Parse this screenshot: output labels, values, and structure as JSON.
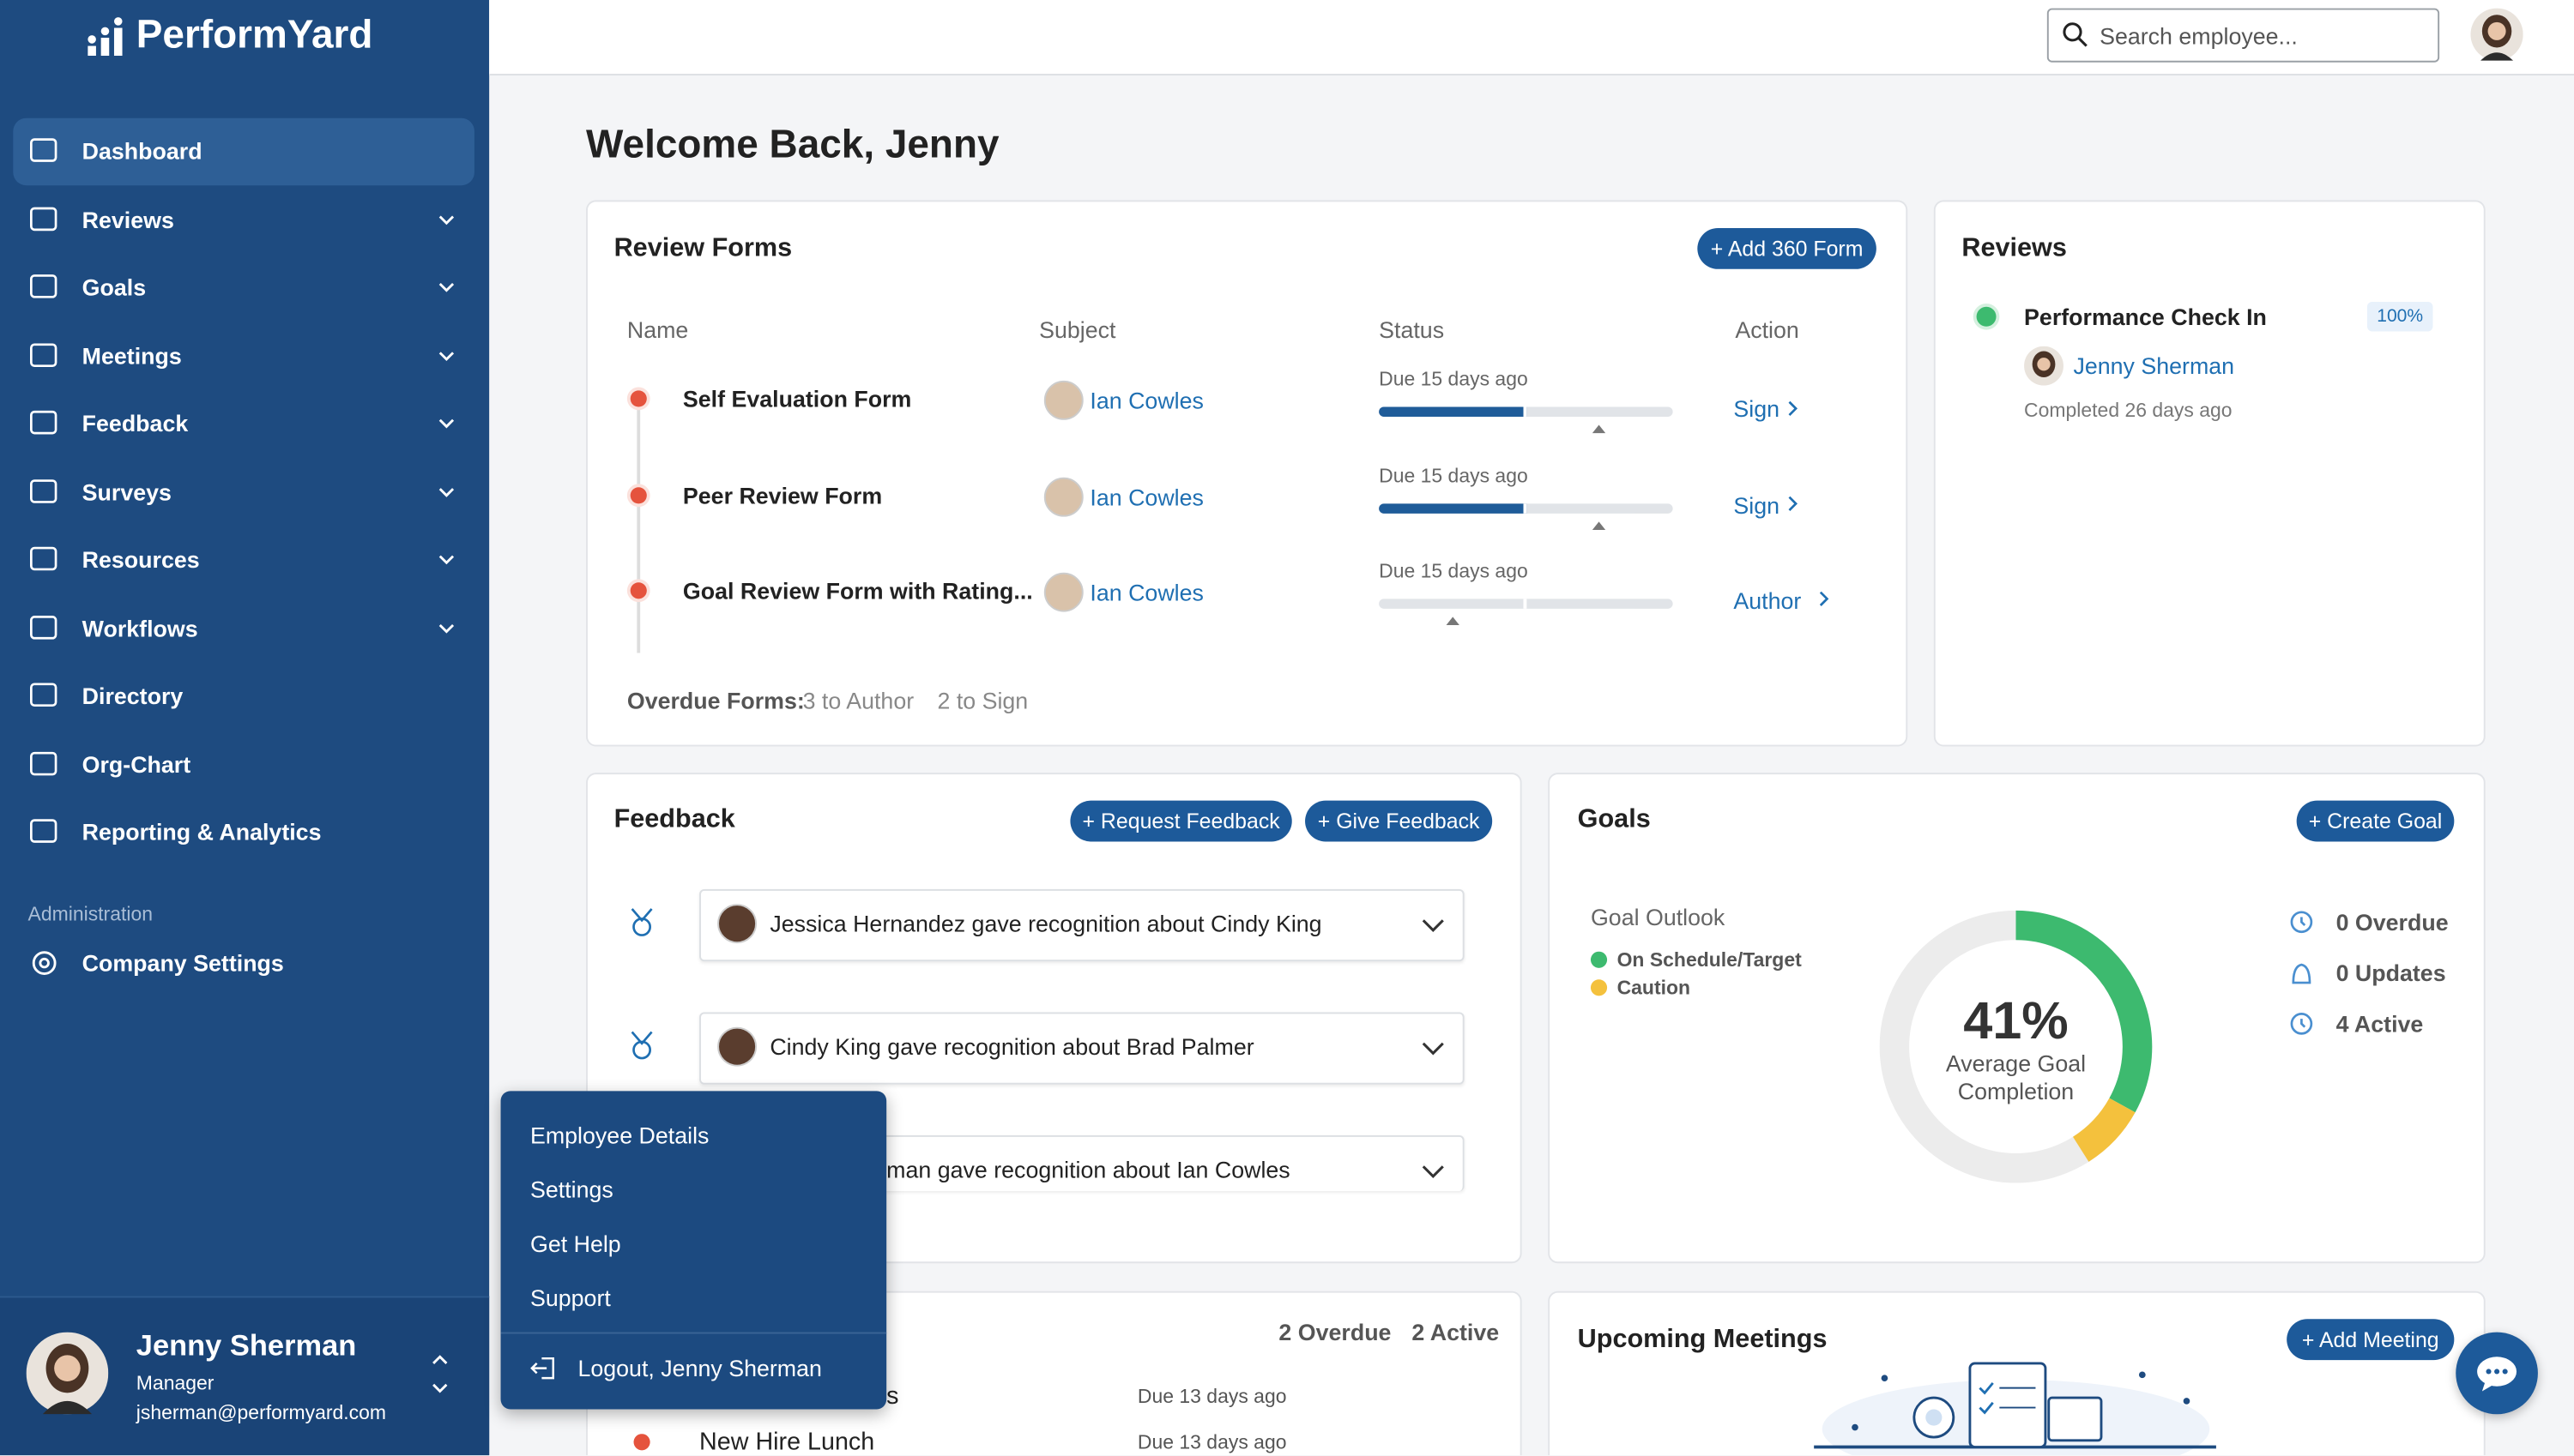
{
  "sidebar": {
    "brand": "PerformYard",
    "nav": [
      "Dashboard",
      "Reviews",
      "Goals",
      "Meetings",
      "Feedback",
      "Surveys",
      "Resources",
      "Workflows",
      "Directory",
      "Org-Chart",
      "Reporting & Analytics"
    ],
    "admin_label": "Administration",
    "admin_items": [
      "Company Settings"
    ],
    "user": {
      "name": "Jenny Sherman",
      "role": "Manager",
      "email": "jsherman@performyard.com"
    }
  },
  "header": {
    "search_placeholder": "Search employee..."
  },
  "welcome": "Welcome Back, Jenny",
  "review_forms": {
    "title": "Review Forms",
    "add_button": "Add 360 Form",
    "columns": [
      "Name",
      "Subject",
      "Status",
      "Action"
    ],
    "rows": [
      {
        "name": "Self Evaluation Form",
        "subject": "Ian Cowles",
        "status": "Due 15 days ago",
        "progress": 50,
        "marker": 75,
        "action": "Sign"
      },
      {
        "name": "Peer Review Form",
        "subject": "Ian Cowles",
        "status": "Due 15 days ago",
        "progress": 50,
        "marker": 75,
        "action": "Sign"
      },
      {
        "name": "Goal Review Form with Rating...",
        "subject": "Ian Cowles",
        "status": "Due 15 days ago",
        "progress": 0,
        "marker": 25,
        "action": "Author"
      }
    ],
    "overdue_label": "Overdue Forms:",
    "overdue_author": "3 to Author",
    "overdue_sign": "2 to Sign"
  },
  "reviews": {
    "title": "Reviews",
    "item": "Performance Check In",
    "badge": "100%",
    "person": "Jenny Sherman",
    "completed": "Completed 26 days ago"
  },
  "feedback": {
    "title": "Feedback",
    "request_button": "Request Feedback",
    "give_button": "Give Feedback",
    "items": [
      "Jessica Hernandez gave recognition about Cindy King",
      "Cindy King gave recognition about Brad Palmer",
      "man gave recognition about Ian Cowles"
    ]
  },
  "goals": {
    "title": "Goals",
    "create_button": "Create Goal",
    "outlook_title": "Goal Outlook",
    "legend": [
      {
        "name": "On Schedule/Target",
        "color": "#3dba6f",
        "value": 33
      },
      {
        "name": "Caution",
        "color": "#f4c13d",
        "value": 8
      }
    ],
    "center_value": "41%",
    "center_label_1": "Average Goal",
    "center_label_2": "Completion",
    "stats": [
      "0 Overdue",
      "0 Updates",
      "4 Active"
    ]
  },
  "tasks": {
    "overdue": "2 Overdue",
    "active": "2 Active",
    "rows": [
      {
        "name": "s",
        "due": "Due 13 days ago"
      },
      {
        "name": "New Hire Lunch",
        "due": "Due 13 days ago"
      }
    ]
  },
  "meetings": {
    "title": "Upcoming Meetings",
    "add_button": "Add Meeting"
  },
  "user_menu": {
    "items": [
      "Employee Details",
      "Settings",
      "Get Help",
      "Support"
    ],
    "logout": "Logout, Jenny Sherman"
  }
}
